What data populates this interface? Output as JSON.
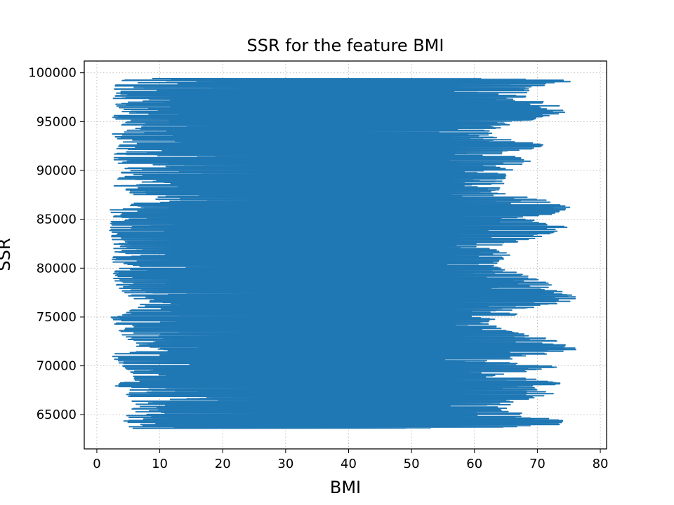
{
  "chart_data": {
    "type": "line",
    "title": "SSR for the feature BMI",
    "xlabel": "BMI",
    "ylabel": "SSR",
    "xlim": [
      -2,
      81
    ],
    "ylim": [
      61500,
      101200
    ],
    "xticks": [
      0,
      10,
      20,
      30,
      40,
      50,
      60,
      70,
      80
    ],
    "yticks": [
      65000,
      70000,
      75000,
      80000,
      85000,
      90000,
      95000,
      100000
    ],
    "xtick_labels": [
      "0",
      "10",
      "20",
      "30",
      "40",
      "50",
      "60",
      "70",
      "80"
    ],
    "ytick_labels": [
      "65000",
      "70000",
      "75000",
      "80000",
      "85000",
      "90000",
      "95000",
      "100000"
    ],
    "grid": true,
    "grid_style": "dotted",
    "line_color": "#1f77b4",
    "series": [
      {
        "description": "Dense zig-zag trace of SSR vs BMI; y spans ~63500-99400, x oscillates between a left extreme ~2-20 and a right extreme ~55-77",
        "left_extremes": [
          [
            4.0,
            63600
          ],
          [
            5.5,
            64100
          ],
          [
            2.0,
            64700
          ],
          [
            6.0,
            65200
          ],
          [
            5.5,
            65700
          ],
          [
            6.5,
            66200
          ],
          [
            4.0,
            66700
          ],
          [
            5.0,
            67200
          ],
          [
            2.2,
            68200
          ],
          [
            6.0,
            68700
          ],
          [
            5.5,
            69300
          ],
          [
            4.5,
            69800
          ],
          [
            2.0,
            71100
          ],
          [
            7.0,
            72200
          ],
          [
            4.5,
            72700
          ],
          [
            3.5,
            73600
          ],
          [
            2.5,
            74600
          ],
          [
            2.2,
            75100
          ],
          [
            6.5,
            75900
          ],
          [
            7.0,
            76500
          ],
          [
            4.5,
            77300
          ],
          [
            2.8,
            78400
          ],
          [
            2.5,
            79300
          ],
          [
            3.5,
            80200
          ],
          [
            2.2,
            80700
          ],
          [
            3.0,
            81500
          ],
          [
            2.5,
            82200
          ],
          [
            2.2,
            83100
          ],
          [
            2.0,
            84100
          ],
          [
            2.5,
            85300
          ],
          [
            2.0,
            86200
          ],
          [
            8.0,
            86900
          ],
          [
            6.0,
            87500
          ],
          [
            2.5,
            88300
          ],
          [
            3.5,
            89500
          ],
          [
            4.5,
            90200
          ],
          [
            2.5,
            91200
          ],
          [
            3.0,
            92100
          ],
          [
            4.0,
            92900
          ],
          [
            2.0,
            93700
          ],
          [
            3.0,
            94700
          ],
          [
            2.5,
            95400
          ],
          [
            3.0,
            96300
          ],
          [
            2.5,
            97200
          ],
          [
            2.5,
            98900
          ],
          [
            4.5,
            99300
          ]
        ],
        "right_extremes": [
          [
            62.0,
            63600
          ],
          [
            74.0,
            64000
          ],
          [
            74.0,
            64500
          ],
          [
            66.0,
            65300
          ],
          [
            65.0,
            65800
          ],
          [
            68.0,
            66500
          ],
          [
            73.0,
            67200
          ],
          [
            69.0,
            67700
          ],
          [
            74.0,
            68200
          ],
          [
            66.0,
            69000
          ],
          [
            73.5,
            69900
          ],
          [
            64.0,
            70500
          ],
          [
            76.5,
            71700
          ],
          [
            72.0,
            72800
          ],
          [
            65.0,
            73600
          ],
          [
            62.0,
            74500
          ],
          [
            77.0,
            76900
          ],
          [
            73.5,
            77700
          ],
          [
            72.0,
            78400
          ],
          [
            67.0,
            79500
          ],
          [
            63.0,
            80200
          ],
          [
            66.0,
            81500
          ],
          [
            63.0,
            82200
          ],
          [
            70.0,
            83100
          ],
          [
            75.0,
            84200
          ],
          [
            69.0,
            84800
          ],
          [
            74.0,
            85900
          ],
          [
            76.0,
            86300
          ],
          [
            72.0,
            86900
          ],
          [
            64.0,
            87700
          ],
          [
            65.0,
            88800
          ],
          [
            65.0,
            89700
          ],
          [
            69.0,
            90900
          ],
          [
            66.0,
            91700
          ],
          [
            71.5,
            92600
          ],
          [
            62.0,
            93500
          ],
          [
            65.0,
            94600
          ],
          [
            74.5,
            95900
          ],
          [
            73.5,
            96700
          ],
          [
            68.0,
            97400
          ],
          [
            69.0,
            98600
          ],
          [
            77.0,
            98900
          ],
          [
            73.0,
            99400
          ]
        ]
      }
    ]
  }
}
